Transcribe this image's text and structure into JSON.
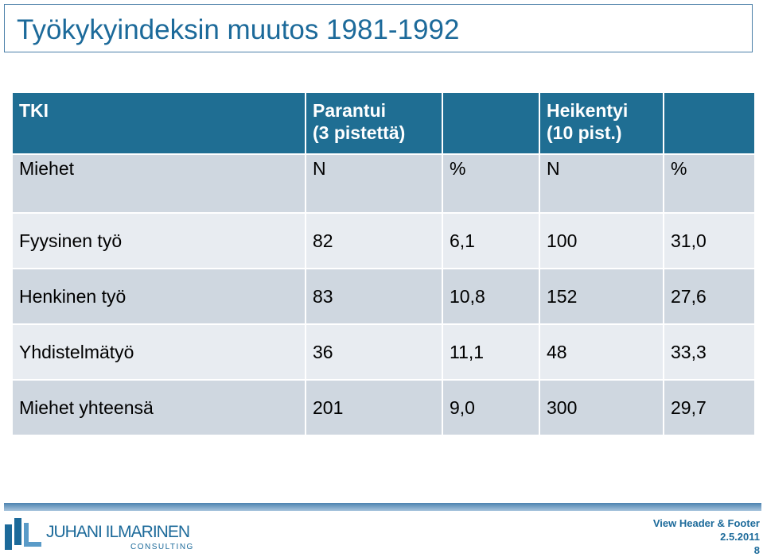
{
  "slide": {
    "title": "Työkykyindeksin muutos 1981-1992"
  },
  "table": {
    "header": {
      "col1": "TKI",
      "improved_line1": "Parantui",
      "improved_line2": "(3 pistettä)",
      "weakened_line1": "Heikentyi",
      "weakened_line2": "(10 pist.)"
    },
    "subheader": {
      "group": "Miehet",
      "n1": "N",
      "p1": "%",
      "n2": "N",
      "p2": "%"
    },
    "rows": [
      {
        "label": "Fyysinen työ",
        "n1": "82",
        "p1": "6,1",
        "n2": "100",
        "p2": "31,0"
      },
      {
        "label": "Henkinen työ",
        "n1": "83",
        "p1": "10,8",
        "n2": "152",
        "p2": "27,6"
      },
      {
        "label": "Yhdistelmätyö",
        "n1": "36",
        "p1": "11,1",
        "n2": "48",
        "p2": "33,3"
      },
      {
        "label": "Miehet yhteensä",
        "n1": "201",
        "p1": "9,0",
        "n2": "300",
        "p2": "29,7"
      }
    ]
  },
  "footer": {
    "logo_name": "JUHANI ILMARINEN",
    "logo_sub": "CONSULTING",
    "header_footer_link": "View Header & Footer",
    "date": "2.5.2011",
    "page_number": "8"
  },
  "colors": {
    "header_bg": "#1f6e93",
    "title_text": "#1c6a9a",
    "row_light": "#e8ecf1",
    "row_dark": "#cfd7e0"
  }
}
